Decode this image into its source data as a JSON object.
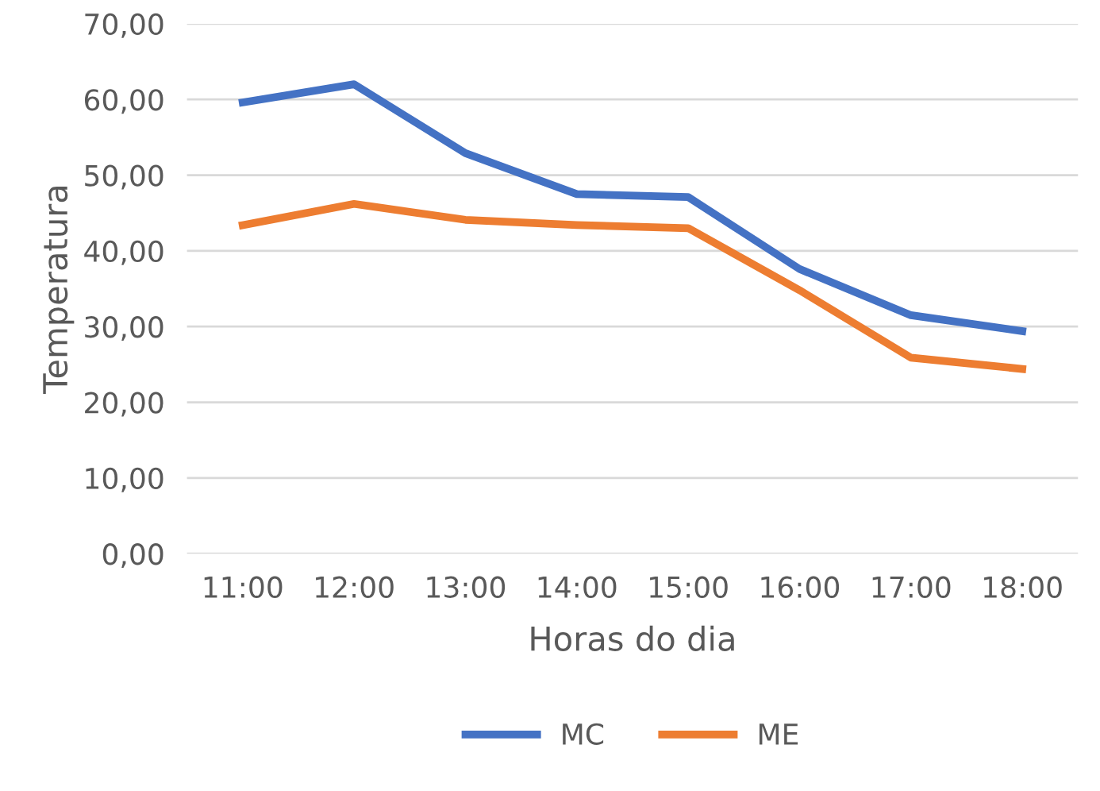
{
  "chart_data": {
    "type": "line",
    "xlabel": "Horas do dia",
    "ylabel": "Temperatura",
    "categories": [
      "11:00",
      "12:00",
      "13:00",
      "14:00",
      "15:00",
      "16:00",
      "17:00",
      "18:00"
    ],
    "series": [
      {
        "name": "MC",
        "color": "#4472c4",
        "values": [
          59.6,
          62.0,
          52.9,
          47.5,
          47.1,
          37.6,
          31.5,
          29.4
        ]
      },
      {
        "name": "ME",
        "color": "#ed7d31",
        "values": [
          43.4,
          46.2,
          44.1,
          43.4,
          43.0,
          34.8,
          25.9,
          24.4
        ]
      }
    ],
    "ylim": [
      0,
      70
    ],
    "yticks": [
      {
        "value": 0,
        "label": "0,00"
      },
      {
        "value": 10,
        "label": "10,00"
      },
      {
        "value": 20,
        "label": "20,00"
      },
      {
        "value": 30,
        "label": "30,00"
      },
      {
        "value": 40,
        "label": "40,00"
      },
      {
        "value": 50,
        "label": "50,00"
      },
      {
        "value": 60,
        "label": "60,00"
      },
      {
        "value": 70,
        "label": "70,00"
      }
    ],
    "grid": "y",
    "legend": "bottom",
    "marker": "none",
    "line_style": "solid"
  }
}
